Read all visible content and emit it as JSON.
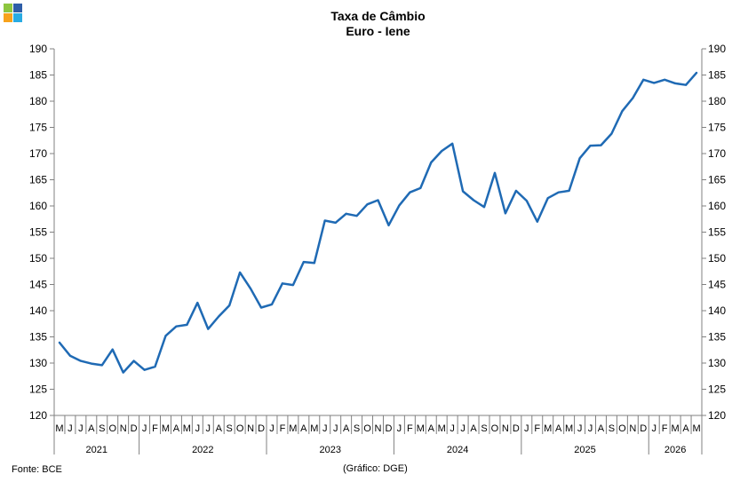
{
  "logo": {
    "colors": [
      "#8DC63F",
      "#2E5EA8",
      "#F7A21B",
      "#29ABE2"
    ]
  },
  "title_line1": "Taxa de Câmbio",
  "title_line2": "Euro - Iene",
  "source": "Fonte: BCE",
  "credit": "(Gráfico: DGE)",
  "colors": {
    "line": "#1F6AB4",
    "axis": "#808080",
    "grid": "#808080"
  },
  "chart_data": {
    "type": "line",
    "title": "Taxa de Câmbio Euro - Iene",
    "xlabel": "",
    "ylabel": "",
    "ylim": [
      120,
      190
    ],
    "yticks": [
      120,
      125,
      130,
      135,
      140,
      145,
      150,
      155,
      160,
      165,
      170,
      175,
      180,
      185,
      190
    ],
    "y_axis_right": true,
    "grid": false,
    "legend": "none",
    "month_labels": [
      "M",
      "J",
      "J",
      "A",
      "S",
      "O",
      "N",
      "D",
      "J",
      "F",
      "M",
      "A",
      "M",
      "J",
      "J",
      "A",
      "S",
      "O",
      "N",
      "D",
      "J",
      "F",
      "M",
      "A",
      "M",
      "J",
      "J",
      "A",
      "S",
      "O",
      "N",
      "D",
      "J",
      "F",
      "M",
      "A",
      "M",
      "J",
      "J",
      "A",
      "S",
      "O",
      "N",
      "D",
      "J",
      "F",
      "M",
      "A",
      "M",
      "J",
      "J",
      "A",
      "S",
      "O",
      "N",
      "D",
      "J",
      "F",
      "M",
      "A",
      "M"
    ],
    "years": [
      {
        "label": "2021",
        "start": 0,
        "count": 8
      },
      {
        "label": "2022",
        "start": 8,
        "count": 12
      },
      {
        "label": "2023",
        "start": 20,
        "count": 12
      },
      {
        "label": "2024",
        "start": 32,
        "count": 12
      },
      {
        "label": "2025",
        "start": 44,
        "count": 12
      },
      {
        "label": "2026",
        "start": 56,
        "count": 5
      }
    ],
    "series": [
      {
        "values": [
          133.9,
          131.4,
          130.4,
          129.9,
          129.6,
          132.6,
          128.2,
          130.4,
          128.7,
          129.3,
          135.2,
          137.0,
          137.3,
          141.5,
          136.5,
          138.9,
          141.0,
          147.3,
          144.2,
          140.6,
          141.2,
          145.2,
          144.9,
          149.3,
          149.1,
          157.2,
          156.8,
          158.5,
          158.1,
          160.3,
          161.1,
          156.3,
          160.1,
          162.6,
          163.4,
          168.3,
          170.5,
          171.9,
          162.8,
          161.1,
          159.8,
          166.3,
          158.6,
          162.9,
          161.0,
          157.0,
          161.5,
          162.6,
          162.9,
          169.1,
          171.5,
          171.6,
          173.8,
          178.1,
          180.6,
          184.1,
          183.5,
          184.1,
          183.4,
          183.1,
          185.4
        ]
      }
    ]
  }
}
